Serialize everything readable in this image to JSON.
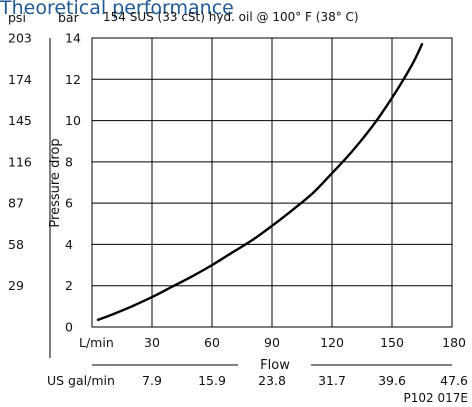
{
  "chart_data": {
    "type": "line",
    "title": "Theoretical performance",
    "subtitle": "154 SUS (33 cSt) hyd. oil @ 100° F (38° C)",
    "xlabel": "Flow",
    "ylabel": "Pressure drop",
    "x_unit": "L/min",
    "x_secondary_unit": "US gal/min",
    "y_unit": "bar",
    "y_secondary_unit": "psi",
    "xlim": [
      0,
      180
    ],
    "ylim": [
      0,
      14
    ],
    "x_ticks": [
      30,
      60,
      90,
      120,
      150,
      180
    ],
    "x_tick_labels": [
      "30",
      "60",
      "90",
      "120",
      "150",
      "180"
    ],
    "x_secondary_tick_labels": [
      "7.9",
      "15.9",
      "23.8",
      "31.7",
      "39.6",
      "47.6"
    ],
    "y_ticks": [
      0,
      2,
      4,
      6,
      8,
      10,
      12,
      14
    ],
    "y_tick_labels": [
      "0",
      "2",
      "4",
      "6",
      "8",
      "10",
      "12",
      "14"
    ],
    "y_secondary_ticks": [
      2,
      4,
      6,
      8,
      10,
      12,
      14
    ],
    "y_secondary_tick_labels": [
      "29",
      "58",
      "87",
      "116",
      "145",
      "174",
      "203"
    ],
    "grid": true,
    "series": [
      {
        "x": [
          3,
          10,
          20,
          30,
          40,
          50,
          60,
          70,
          80,
          90,
          100,
          110,
          120,
          130,
          140,
          150,
          160,
          165
        ],
        "y": [
          0.35,
          0.6,
          1.0,
          1.45,
          1.95,
          2.45,
          3.0,
          3.6,
          4.2,
          4.9,
          5.65,
          6.45,
          7.45,
          8.5,
          9.7,
          11.1,
          12.7,
          13.7
        ]
      }
    ],
    "figure_code": "P102 017E"
  }
}
